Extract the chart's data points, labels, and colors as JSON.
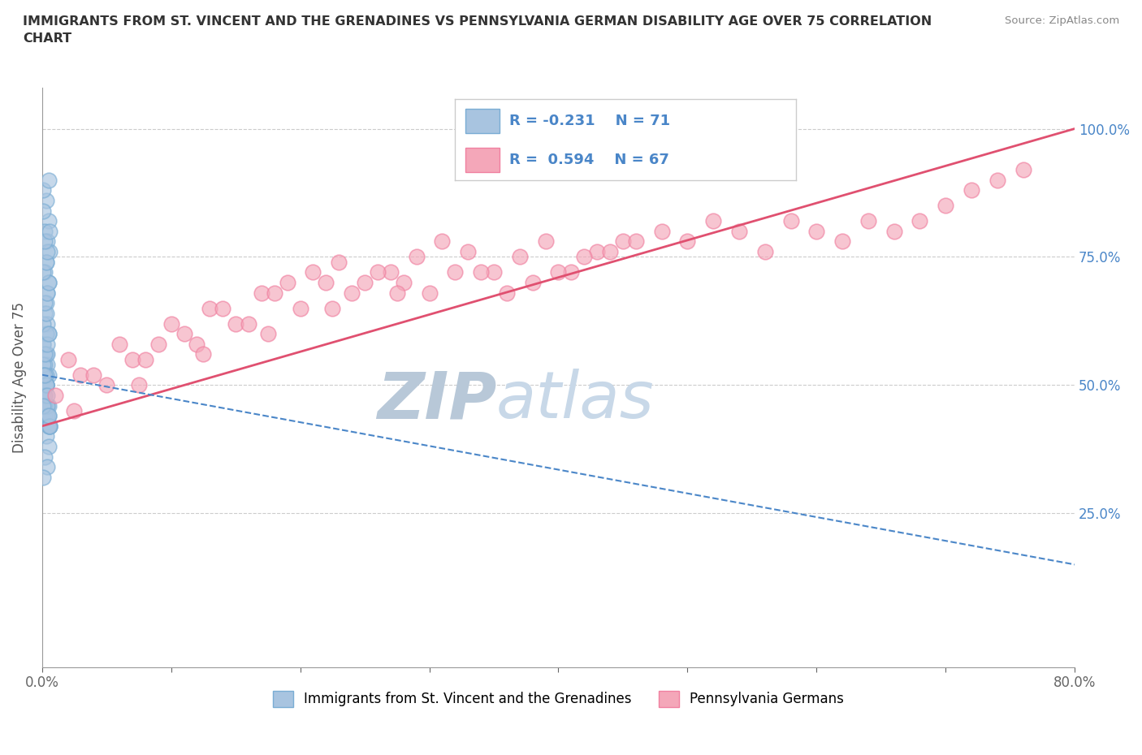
{
  "title": "IMMIGRANTS FROM ST. VINCENT AND THE GRENADINES VS PENNSYLVANIA GERMAN DISABILITY AGE OVER 75 CORRELATION\nCHART",
  "source_text": "Source: ZipAtlas.com",
  "ylabel_text": "Disability Age Over 75",
  "xlim": [
    0,
    80
  ],
  "ylim": [
    -5,
    108
  ],
  "blue_color": "#a8c4e0",
  "pink_color": "#f4a7b9",
  "blue_edge": "#7aadd4",
  "pink_edge": "#f080a0",
  "trend_blue_color": "#4a86c8",
  "trend_pink_color": "#e05070",
  "watermark_color": "#ccd8e8",
  "R_blue": -0.231,
  "N_blue": 71,
  "R_pink": 0.594,
  "N_pink": 67,
  "legend_label_blue": "Immigrants from St. Vincent and the Grenadines",
  "legend_label_pink": "Pennsylvania Germans",
  "blue_x": [
    0.3,
    0.5,
    0.2,
    0.4,
    0.1,
    0.6,
    0.3,
    0.2,
    0.5,
    0.4,
    0.3,
    0.1,
    0.2,
    0.4,
    0.5,
    0.1,
    0.3,
    0.4,
    0.2,
    0.5,
    0.3,
    0.1,
    0.4,
    0.2,
    0.6,
    0.3,
    0.5,
    0.2,
    0.4,
    0.1,
    0.3,
    0.5,
    0.2,
    0.4,
    0.1,
    0.3,
    0.2,
    0.5,
    0.4,
    0.6,
    0.1,
    0.3,
    0.2,
    0.4,
    0.5,
    0.1,
    0.3,
    0.4,
    0.2,
    0.6,
    0.3,
    0.1,
    0.2,
    0.4,
    0.5,
    0.3,
    0.1,
    0.2,
    0.4,
    0.5,
    0.3,
    0.2,
    0.1,
    0.4,
    0.5,
    0.6,
    0.3,
    0.2,
    0.4,
    0.1,
    0.5
  ],
  "blue_y": [
    86,
    82,
    80,
    78,
    84,
    76,
    74,
    72,
    70,
    68,
    66,
    88,
    64,
    62,
    60,
    58,
    56,
    54,
    52,
    90,
    50,
    48,
    46,
    44,
    42,
    40,
    38,
    36,
    34,
    32,
    50,
    52,
    54,
    56,
    58,
    60,
    48,
    46,
    44,
    42,
    62,
    64,
    66,
    68,
    70,
    72,
    74,
    76,
    78,
    80,
    50,
    48,
    46,
    44,
    42,
    52,
    54,
    56,
    58,
    60,
    50,
    48,
    52,
    46,
    44,
    42,
    50,
    52,
    48,
    46,
    44
  ],
  "pink_x": [
    1.0,
    3.0,
    5.0,
    7.0,
    9.0,
    11.0,
    13.0,
    15.0,
    17.0,
    19.0,
    21.0,
    23.0,
    25.0,
    27.0,
    29.0,
    31.0,
    33.0,
    35.0,
    37.0,
    39.0,
    41.0,
    43.0,
    45.0,
    2.0,
    6.0,
    10.0,
    14.0,
    18.0,
    22.0,
    26.0,
    30.0,
    34.0,
    38.0,
    42.0,
    46.0,
    4.0,
    8.0,
    12.0,
    16.0,
    20.0,
    24.0,
    28.0,
    32.0,
    36.0,
    40.0,
    44.0,
    48.0,
    50.0,
    52.0,
    54.0,
    56.0,
    58.0,
    60.0,
    62.0,
    64.0,
    66.0,
    68.0,
    70.0,
    72.0,
    74.0,
    76.0,
    2.5,
    7.5,
    12.5,
    17.5,
    22.5,
    27.5
  ],
  "pink_y": [
    48,
    52,
    50,
    55,
    58,
    60,
    65,
    62,
    68,
    70,
    72,
    74,
    70,
    72,
    75,
    78,
    76,
    72,
    75,
    78,
    72,
    76,
    78,
    55,
    58,
    62,
    65,
    68,
    70,
    72,
    68,
    72,
    70,
    75,
    78,
    52,
    55,
    58,
    62,
    65,
    68,
    70,
    72,
    68,
    72,
    76,
    80,
    78,
    82,
    80,
    76,
    82,
    80,
    78,
    82,
    80,
    82,
    85,
    88,
    90,
    92,
    45,
    50,
    56,
    60,
    65,
    68
  ],
  "pink_trend_x0": 0,
  "pink_trend_y0": 42,
  "pink_trend_x1": 80,
  "pink_trend_y1": 100,
  "blue_trend_x0": 0,
  "blue_trend_y0": 52,
  "blue_trend_x1": 80,
  "blue_trend_y1": 15
}
